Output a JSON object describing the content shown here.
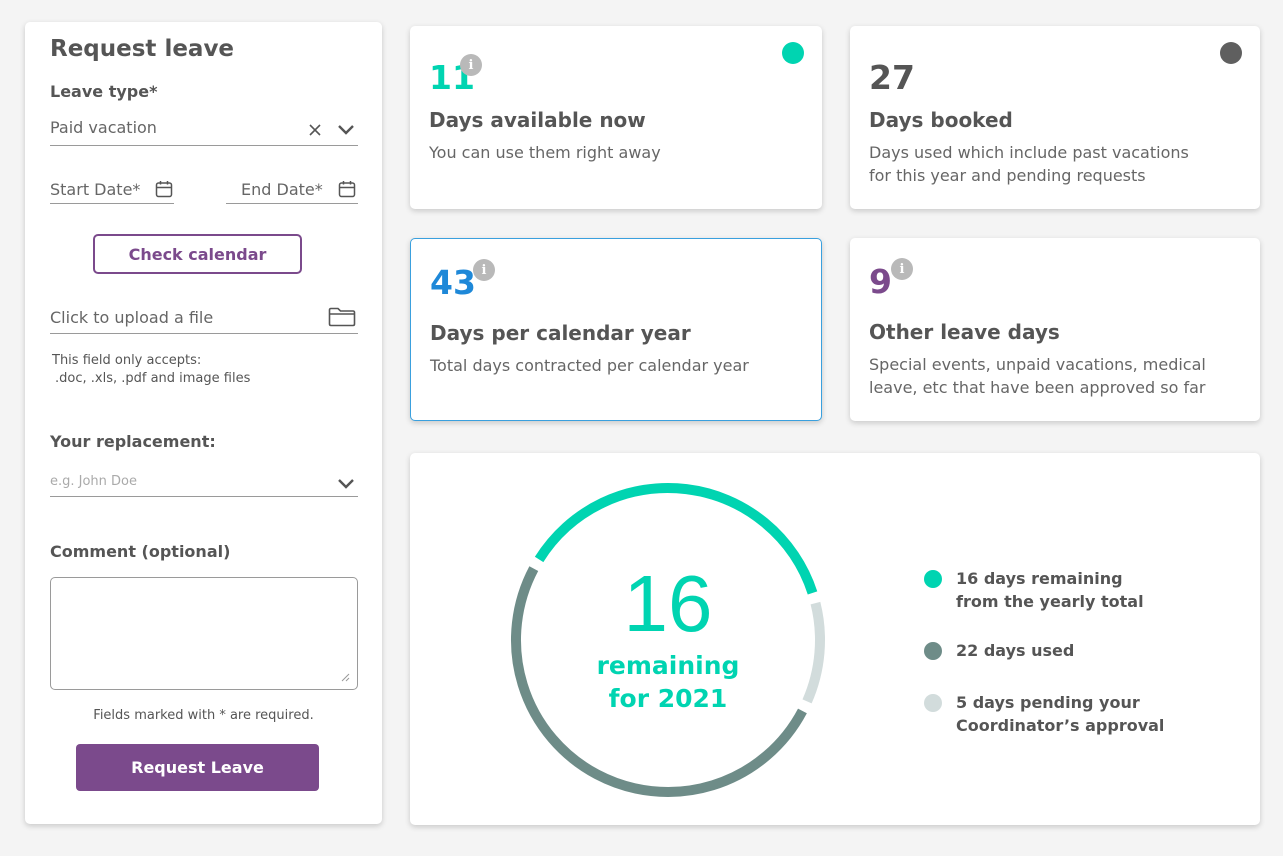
{
  "form": {
    "title": "Request leave",
    "leave_type_label": "Leave type*",
    "leave_type_value": "Paid vacation",
    "start_date_label": "Start Date*",
    "end_date_label": "End Date*",
    "check_calendar_label": "Check calendar",
    "upload_label": "Click to upload a file",
    "upload_hint_line1": "This field only accepts:",
    "upload_hint_line2": ".doc, .xls, .pdf and image files",
    "replacement_label": "Your replacement:",
    "replacement_placeholder": "e.g. John Doe",
    "comment_label": "Comment (optional)",
    "required_note": "Fields marked with * are required.",
    "submit_label": "Request Leave"
  },
  "stats": {
    "available": {
      "value": "11",
      "title": "Days available now",
      "desc": "You can use them right away",
      "color": "#00d4b1",
      "dot_color": "#00d4b1"
    },
    "booked": {
      "value": "27",
      "title": "Days booked",
      "desc_line1": "Days used which include past vacations",
      "desc_line2": "for this year and pending requests",
      "color": "#555555",
      "dot_color": "#5f5f5f"
    },
    "per_year": {
      "value": "43",
      "title": "Days per calendar year",
      "desc": "Total days contracted per calendar year",
      "color": "#1e88d8"
    },
    "other": {
      "value": "9",
      "title": "Other leave days",
      "desc_line1": "Special events, unpaid vacations, medical",
      "desc_line2": "leave, etc that have been approved so far",
      "color": "#7b4a8c"
    }
  },
  "donut": {
    "center_value": "16",
    "center_line1": "remaining",
    "center_line2": "for 2021",
    "segments": [
      {
        "name": "remaining",
        "value": 16,
        "color": "#00d4b1"
      },
      {
        "name": "pending",
        "value": 5,
        "color": "#d2dcdc"
      },
      {
        "name": "used",
        "value": 22,
        "color": "#6e8c88"
      }
    ],
    "legend": [
      {
        "line1": "16 days remaining",
        "line2": "from the yearly total",
        "color": "#00d4b1"
      },
      {
        "line1": "22 days used",
        "line2": "",
        "color": "#6e8c88"
      },
      {
        "line1": "5 days pending your",
        "line2": "Coordinator’s approval",
        "color": "#d2dcdc"
      }
    ]
  }
}
